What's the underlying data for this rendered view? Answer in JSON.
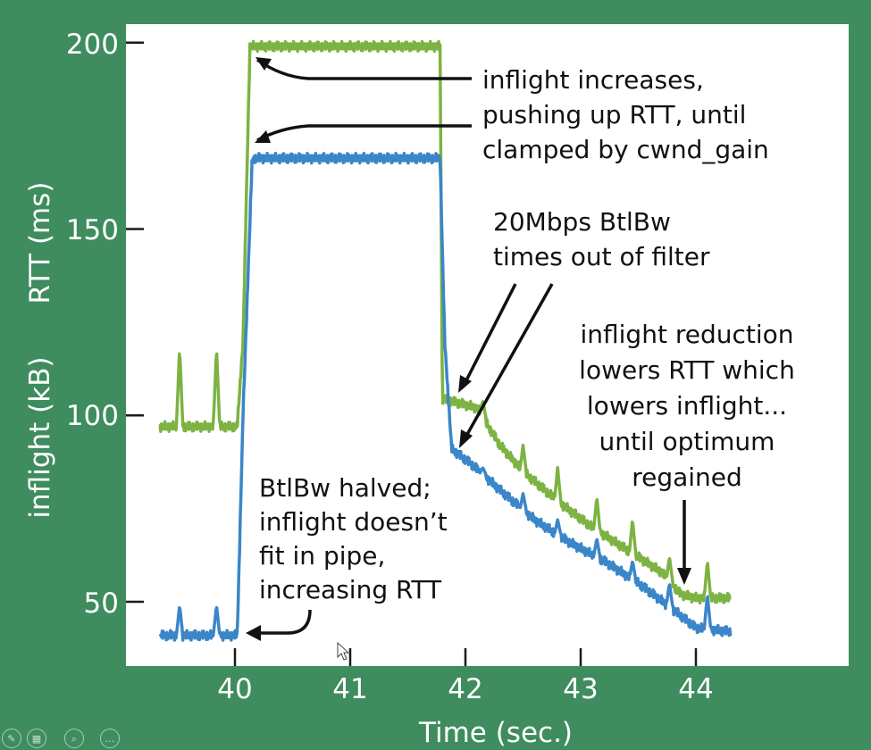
{
  "chart_data": {
    "type": "line",
    "xlabel": "Time (sec.)",
    "ylabel_rtt": "RTT (ms)",
    "ylabel_inflight": "inflight (kB)",
    "xlim": [
      39.05,
      45.5
    ],
    "ylim": [
      32,
      205
    ],
    "xticks": [
      40,
      41,
      42,
      43,
      44
    ],
    "xtick_labels": [
      "40",
      "41",
      "42",
      "43",
      "44"
    ],
    "yticks": [
      50,
      100,
      150,
      200
    ],
    "ytick_labels": [
      "50",
      "100",
      "150",
      "200"
    ],
    "series": [
      {
        "name": "RTT (ms)",
        "color": "#7cb342",
        "baseline": [
          [
            39.35,
            97
          ],
          [
            40.02,
            97
          ],
          [
            40.07,
            120
          ],
          [
            40.13,
            199
          ],
          [
            41.78,
            199
          ],
          [
            41.8,
            104.5
          ],
          [
            42.1,
            102
          ],
          [
            42.3,
            92
          ],
          [
            42.5,
            85
          ],
          [
            42.8,
            77
          ],
          [
            43.1,
            70
          ],
          [
            43.4,
            64
          ],
          [
            43.7,
            58
          ],
          [
            43.87,
            52
          ],
          [
            44.0,
            51
          ],
          [
            44.3,
            51
          ]
        ],
        "spikes": [
          [
            39.52,
            118
          ],
          [
            39.84,
            118
          ],
          [
            42.15,
            104
          ],
          [
            42.5,
            92
          ],
          [
            42.8,
            86
          ],
          [
            43.14,
            78
          ],
          [
            43.45,
            72
          ],
          [
            43.77,
            62
          ],
          [
            44.1,
            61
          ]
        ]
      },
      {
        "name": "inflight (kB)",
        "color": "#3a86c8",
        "baseline": [
          [
            39.35,
            41
          ],
          [
            40.02,
            41
          ],
          [
            40.07,
            100
          ],
          [
            40.15,
            169
          ],
          [
            41.78,
            169
          ],
          [
            41.82,
            120
          ],
          [
            41.88,
            91
          ],
          [
            42.05,
            87
          ],
          [
            42.3,
            80
          ],
          [
            42.6,
            72
          ],
          [
            42.9,
            66
          ],
          [
            43.2,
            61
          ],
          [
            43.5,
            55
          ],
          [
            43.8,
            48
          ],
          [
            44.0,
            43
          ],
          [
            44.3,
            42
          ]
        ],
        "spikes": [
          [
            39.52,
            49
          ],
          [
            39.84,
            49
          ],
          [
            42.15,
            86
          ],
          [
            42.5,
            79
          ],
          [
            42.8,
            72
          ],
          [
            43.14,
            67
          ],
          [
            43.45,
            61
          ],
          [
            43.77,
            55
          ],
          [
            44.1,
            52
          ]
        ]
      }
    ]
  },
  "annotations": {
    "clamp_lines": [
      "inflight increases,",
      "pushing up RTT, until",
      "clamped by cwnd_gain"
    ],
    "btlbw_timeout_lines": [
      "20Mbps BtlBw",
      "times out of filter"
    ],
    "reduction_lines": [
      "inflight reduction",
      "lowers RTT which",
      "lowers inflight...",
      "until optimum",
      "regained"
    ],
    "halved_lines": [
      "BtlBw halved;",
      "inflight doesn’t",
      "fit in pipe,",
      "increasing RTT"
    ]
  },
  "nav_icons": [
    "pen-icon",
    "slides-icon",
    "zoom-icon",
    "more-icon"
  ]
}
